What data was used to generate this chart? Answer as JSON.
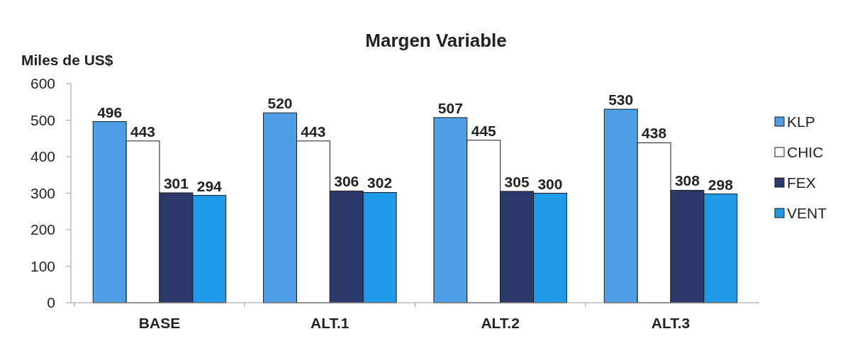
{
  "chart_data": {
    "type": "bar",
    "title": "Margen Variable",
    "ylabel": "Miles de US$",
    "categories": [
      "BASE",
      "ALT.1",
      "ALT.2",
      "ALT.3"
    ],
    "series": [
      {
        "name": "KLP",
        "color": "#4f9fe6",
        "values": [
          496,
          520,
          507,
          530
        ]
      },
      {
        "name": "CHIC",
        "color": "#ffffff",
        "values": [
          443,
          443,
          445,
          438
        ]
      },
      {
        "name": "FEX",
        "color": "#2b3a6b",
        "values": [
          301,
          306,
          305,
          308
        ]
      },
      {
        "name": "VENT",
        "color": "#1f9ae8",
        "values": [
          294,
          302,
          300,
          298
        ]
      }
    ],
    "ylim": [
      0,
      600
    ],
    "yticks": [
      0,
      100,
      200,
      300,
      400,
      500,
      600
    ],
    "grid": false,
    "legend": "right",
    "data_labels": true
  }
}
